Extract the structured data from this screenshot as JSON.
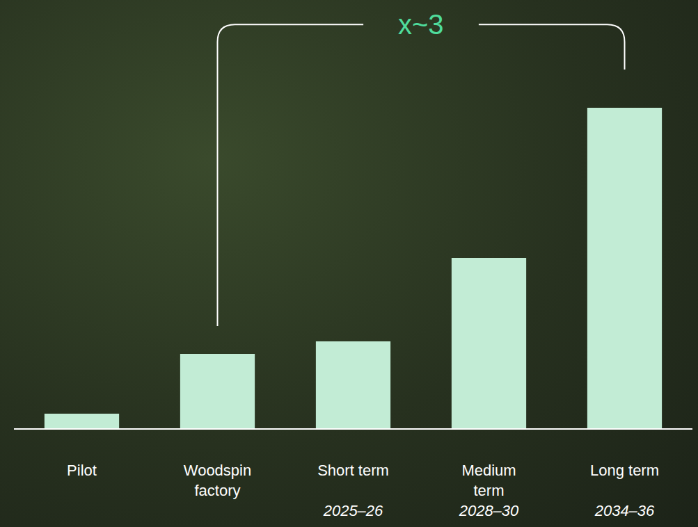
{
  "chart_data": {
    "type": "bar",
    "categories": [
      "Pilot",
      "Woodspin factory",
      "Short term",
      "Medium term",
      "Long term"
    ],
    "periods": [
      null,
      null,
      "2025–26",
      "2028–30",
      "2034–36"
    ],
    "values": [
      21,
      107,
      125,
      245,
      461
    ],
    "color": "#c2ecd5",
    "ylim": [
      0,
      461
    ],
    "yticks": [],
    "grid": false,
    "tick_labels": "x",
    "annotation": "x~3"
  }
}
